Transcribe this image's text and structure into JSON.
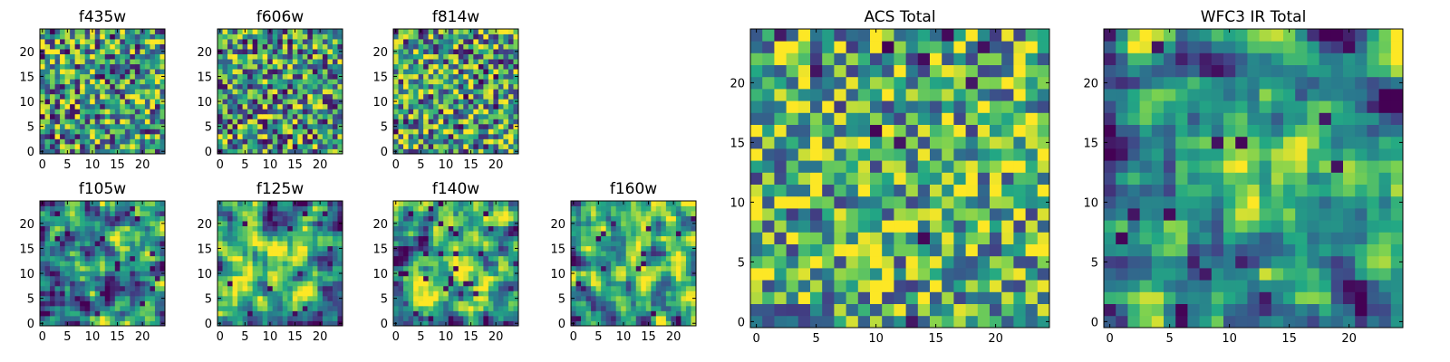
{
  "colormap": {
    "name": "viridis",
    "stops": [
      "#440154",
      "#414487",
      "#2a788e",
      "#22a884",
      "#7ad151",
      "#fde725"
    ]
  },
  "chart_data": [
    {
      "type": "heatmap",
      "title": "f435w",
      "grid": 25,
      "xticks": [
        "0",
        "5",
        "10",
        "15",
        "20"
      ],
      "yticks": [
        "0",
        "5",
        "10",
        "15",
        "20"
      ],
      "xlim": [
        -0.5,
        24.5
      ],
      "ylim": [
        -0.5,
        24.5
      ],
      "seed": 11,
      "smooth": 0,
      "contrast": 1.0,
      "bias": 0.55,
      "dark_fraction": 0.04
    },
    {
      "type": "heatmap",
      "title": "f606w",
      "grid": 25,
      "xticks": [
        "0",
        "5",
        "10",
        "15",
        "20"
      ],
      "yticks": [
        "0",
        "5",
        "10",
        "15",
        "20"
      ],
      "xlim": [
        -0.5,
        24.5
      ],
      "ylim": [
        -0.5,
        24.5
      ],
      "seed": 23,
      "smooth": 0,
      "contrast": 1.0,
      "bias": 0.55,
      "dark_fraction": 0.04
    },
    {
      "type": "heatmap",
      "title": "f814w",
      "grid": 25,
      "xticks": [
        "0",
        "5",
        "10",
        "15",
        "20"
      ],
      "yticks": [
        "0",
        "5",
        "10",
        "15",
        "20"
      ],
      "xlim": [
        -0.5,
        24.5
      ],
      "ylim": [
        -0.5,
        24.5
      ],
      "seed": 37,
      "smooth": 0,
      "contrast": 1.0,
      "bias": 0.58,
      "dark_fraction": 0.04
    },
    {
      "type": "heatmap",
      "title": "f105w",
      "grid": 25,
      "xticks": [
        "0",
        "5",
        "10",
        "15",
        "20"
      ],
      "yticks": [
        "0",
        "5",
        "10",
        "15",
        "20"
      ],
      "xlim": [
        -0.5,
        24.5
      ],
      "ylim": [
        -0.5,
        24.5
      ],
      "seed": 41,
      "smooth": 1,
      "contrast": 1.4,
      "bias": 0.5,
      "dark_fraction": 0.03,
      "bright_center": [
        15,
        15
      ]
    },
    {
      "type": "heatmap",
      "title": "f125w",
      "grid": 25,
      "xticks": [
        "0",
        "5",
        "10",
        "15",
        "20"
      ],
      "yticks": [
        "0",
        "5",
        "10",
        "15",
        "20"
      ],
      "xlim": [
        -0.5,
        24.5
      ],
      "ylim": [
        -0.5,
        24.5
      ],
      "seed": 53,
      "smooth": 1,
      "contrast": 1.4,
      "bias": 0.5,
      "dark_fraction": 0.03,
      "bright_center": [
        13,
        12
      ]
    },
    {
      "type": "heatmap",
      "title": "f140w",
      "grid": 25,
      "xticks": [
        "0",
        "5",
        "10",
        "15",
        "20"
      ],
      "yticks": [
        "0",
        "5",
        "10",
        "15",
        "20"
      ],
      "xlim": [
        -0.5,
        24.5
      ],
      "ylim": [
        -0.5,
        24.5
      ],
      "seed": 67,
      "smooth": 1,
      "contrast": 1.4,
      "bias": 0.52,
      "dark_fraction": 0.03,
      "bright_center": [
        12,
        13
      ]
    },
    {
      "type": "heatmap",
      "title": "f160w",
      "grid": 25,
      "xticks": [
        "0",
        "5",
        "10",
        "15",
        "20"
      ],
      "yticks": [
        "0",
        "5",
        "10",
        "15",
        "20"
      ],
      "xlim": [
        -0.5,
        24.5
      ],
      "ylim": [
        -0.5,
        24.5
      ],
      "seed": 79,
      "smooth": 1,
      "contrast": 1.4,
      "bias": 0.52,
      "dark_fraction": 0.03,
      "bright_center": [
        13,
        12
      ]
    },
    {
      "type": "heatmap",
      "title": "ACS Total",
      "grid": 25,
      "xticks": [
        "0",
        "5",
        "10",
        "15",
        "20"
      ],
      "yticks": [
        "0",
        "5",
        "10",
        "15",
        "20"
      ],
      "xlim": [
        -0.5,
        24.5
      ],
      "ylim": [
        -0.5,
        24.5
      ],
      "seed": 97,
      "smooth": 0,
      "contrast": 0.9,
      "bias": 0.62,
      "dark_fraction": 0.025
    },
    {
      "type": "heatmap",
      "title": "WFC3 IR Total",
      "grid": 25,
      "xticks": [
        "0",
        "5",
        "10",
        "15",
        "20"
      ],
      "yticks": [
        "0",
        "5",
        "10",
        "15",
        "20"
      ],
      "xlim": [
        -0.5,
        24.5
      ],
      "ylim": [
        -0.5,
        24.5
      ],
      "seed": 113,
      "smooth": 1,
      "contrast": 1.3,
      "bias": 0.52,
      "dark_fraction": 0.025,
      "bright_center": [
        13,
        13
      ]
    }
  ]
}
